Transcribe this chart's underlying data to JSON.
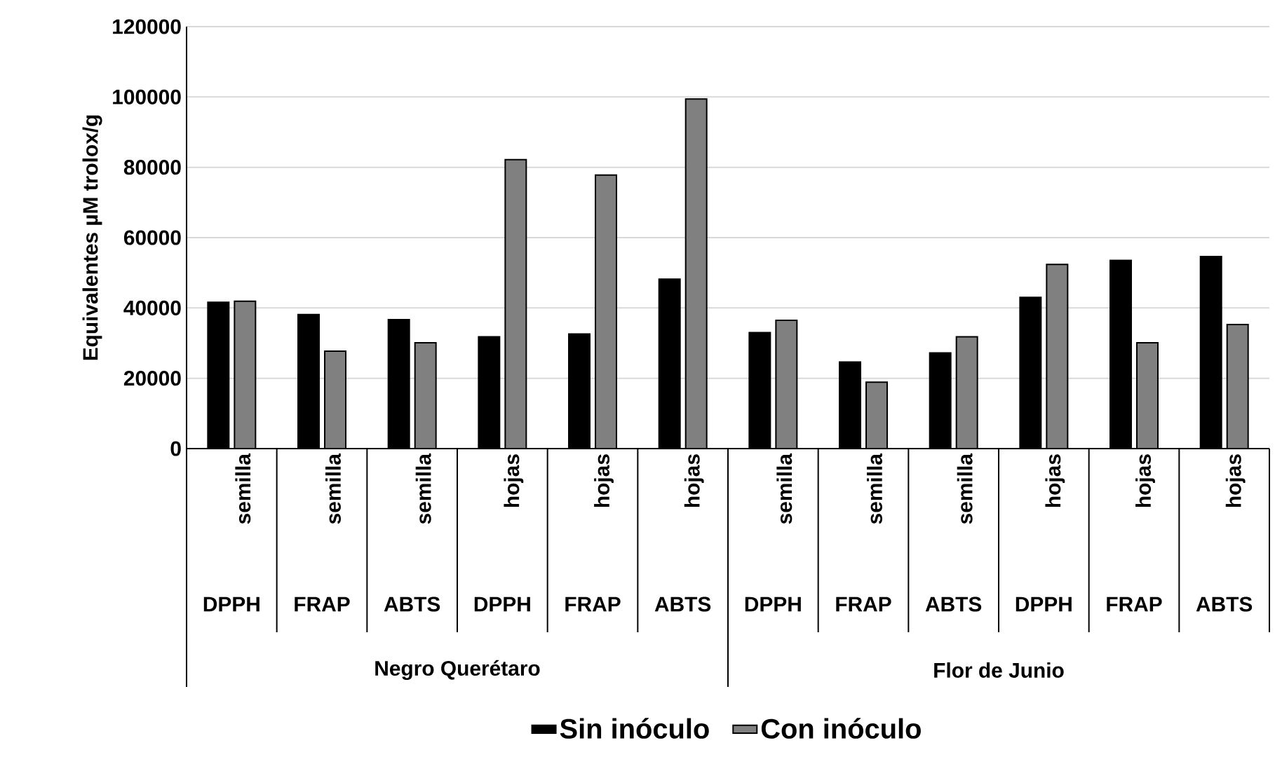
{
  "chart_data": {
    "type": "bar",
    "ylabel": "Equivalentes µM trolox/g",
    "categories": [
      "semilla",
      "semilla",
      "semilla",
      "hojas",
      "hojas",
      "hojas",
      "semilla",
      "semilla",
      "semilla",
      "hojas",
      "hojas",
      "hojas"
    ],
    "series": [
      {
        "name": "Sin inóculo",
        "color": "#000000",
        "values": [
          41600,
          38100,
          36700,
          31800,
          32600,
          48200,
          33000,
          24600,
          27200,
          43000,
          53500,
          54600
        ]
      },
      {
        "name": "Con inóculo",
        "color": "#808080",
        "values": [
          41900,
          27700,
          30100,
          82200,
          77800,
          99400,
          36500,
          18900,
          31800,
          52400,
          30100,
          35300
        ]
      }
    ],
    "ylim": [
      0,
      120000
    ],
    "yticks": [
      0,
      20000,
      40000,
      60000,
      80000,
      100000,
      120000
    ],
    "grid": "y",
    "legend": "bottom",
    "annotations": [
      "DPPH",
      "FRAP",
      "ABTS",
      "DPPH",
      "FRAP",
      "ABTS",
      "DPPH",
      "FRAP",
      "ABTS",
      "DPPH",
      "FRAP",
      "ABTS",
      "Negro Querétaro",
      "Flor de Junio"
    ]
  }
}
